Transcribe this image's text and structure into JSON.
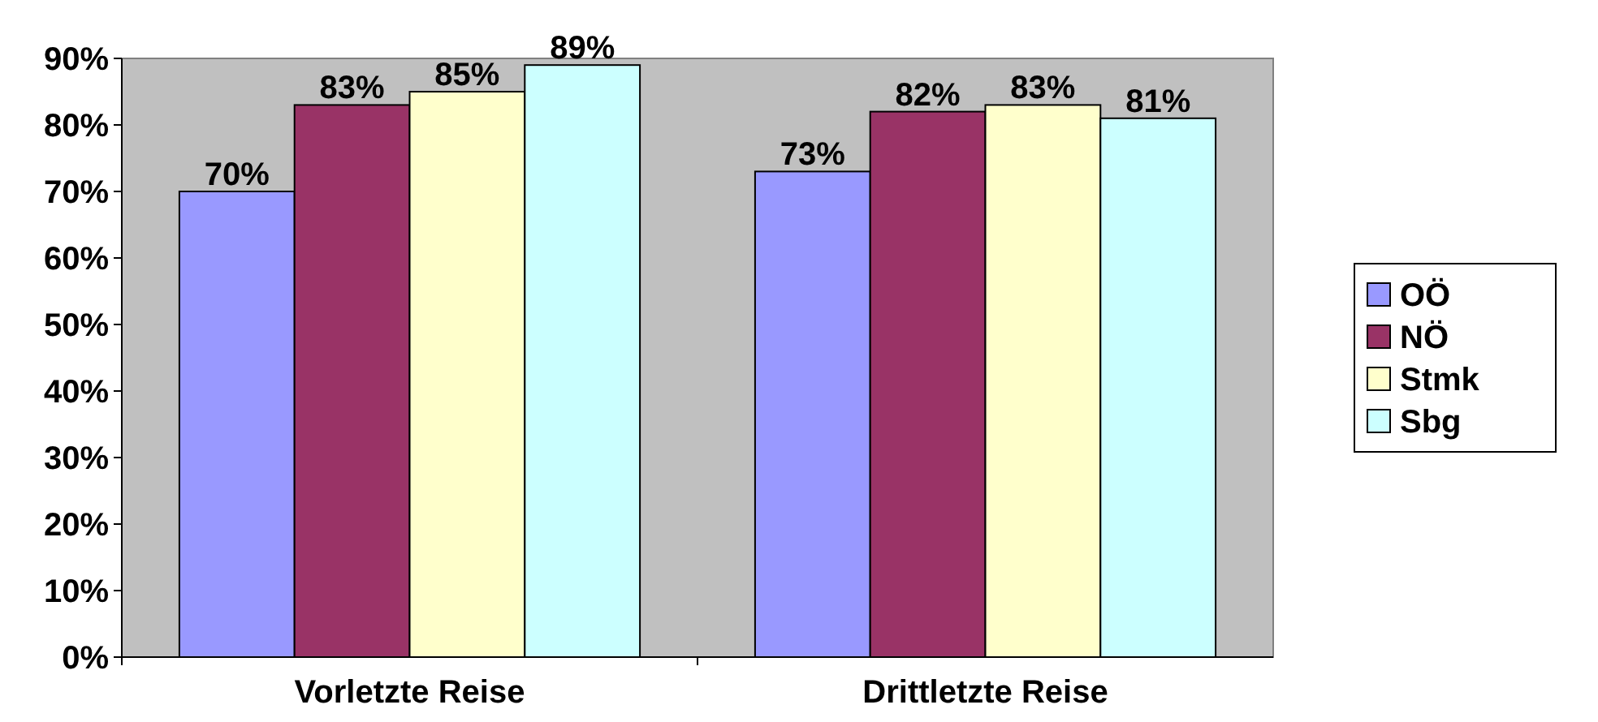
{
  "chart_data": {
    "type": "bar",
    "categories": [
      "Vorletzte Reise",
      "Drittletzte Reise"
    ],
    "series": [
      {
        "name": "OÖ",
        "color": "#9999ff",
        "values": [
          70,
          73
        ],
        "value_labels": [
          "70%",
          "73%"
        ]
      },
      {
        "name": "NÖ",
        "color": "#993366",
        "values": [
          83,
          82
        ],
        "value_labels": [
          "83%",
          "82%"
        ]
      },
      {
        "name": "Stmk",
        "color": "#ffffcc",
        "values": [
          85,
          83
        ],
        "value_labels": [
          "85%",
          "83%"
        ]
      },
      {
        "name": "Sbg",
        "color": "#ccffff",
        "values": [
          89,
          81
        ],
        "value_labels": [
          "89%",
          "81%"
        ]
      }
    ],
    "ylim": [
      0,
      90
    ],
    "yticks": [
      {
        "value": 0,
        "label": "0%"
      },
      {
        "value": 10,
        "label": "10%"
      },
      {
        "value": 20,
        "label": "20%"
      },
      {
        "value": 30,
        "label": "30%"
      },
      {
        "value": 40,
        "label": "40%"
      },
      {
        "value": 50,
        "label": "50%"
      },
      {
        "value": 60,
        "label": "60%"
      },
      {
        "value": 70,
        "label": "70%"
      },
      {
        "value": 80,
        "label": "80%"
      },
      {
        "value": 90,
        "label": "90%"
      }
    ],
    "legend": "right"
  }
}
